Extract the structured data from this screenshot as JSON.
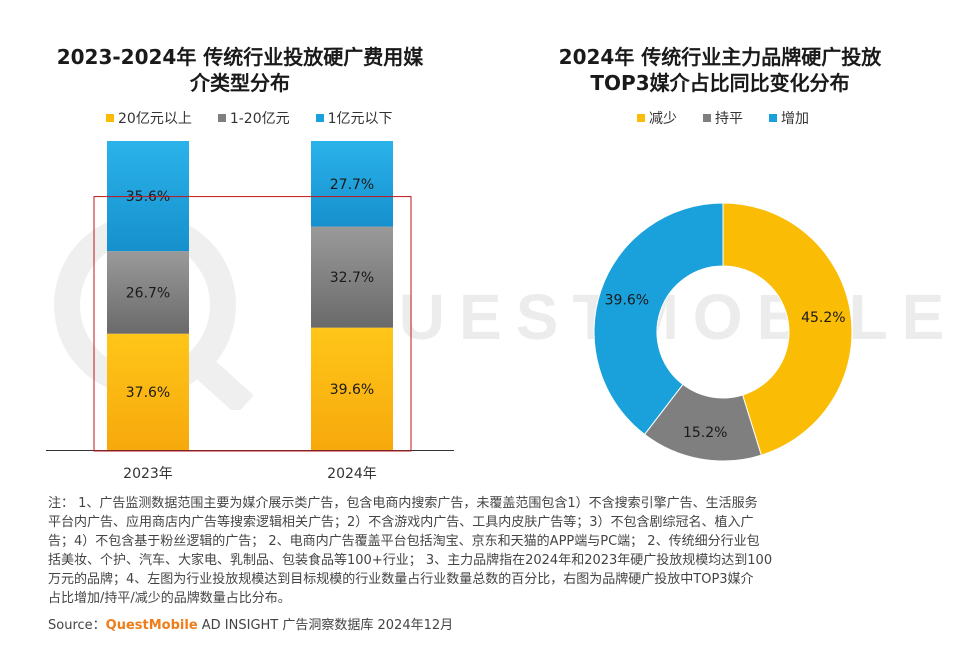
{
  "colors": {
    "yellow": "#fbbc05",
    "gray": "#7f7f7f",
    "blue": "#1aa1dc",
    "highlight_box": "#c0161b",
    "brand": "#f07d1a"
  },
  "watermark": {
    "text": "QUESTMOBILE"
  },
  "chart_data": [
    {
      "type": "bar",
      "stacked": true,
      "title": "2023-2024年 传统行业投放硬广费用媒介类型分布",
      "title_lines": [
        "2023-2024年 传统行业投放硬广费用媒",
        "介类型分布"
      ],
      "categories": [
        "2023年",
        "2024年"
      ],
      "series": [
        {
          "name": "20亿元以上",
          "color": "#fbbc05",
          "values": [
            37.6,
            39.6
          ]
        },
        {
          "name": "1-20亿元",
          "color": "#7f7f7f",
          "values": [
            26.7,
            32.7
          ]
        },
        {
          "name": "1亿元以下",
          "color": "#1aa1dc",
          "values": [
            35.6,
            27.7
          ]
        }
      ],
      "unit": "%",
      "ylim": [
        0,
        100
      ],
      "legend_position": "top",
      "grid": false
    },
    {
      "type": "pie",
      "donut": true,
      "title": "2024年 传统行业主力品牌硬广投放TOP3媒介占比同比变化分布",
      "title_lines": [
        "2024年 传统行业主力品牌硬广投放",
        "TOP3媒介占比同比变化分布"
      ],
      "labels": [
        "减少",
        "持平",
        "增加"
      ],
      "values": [
        45.2,
        15.2,
        39.6
      ],
      "colors": [
        "#fbbc05",
        "#7f7f7f",
        "#1aa1dc"
      ],
      "unit": "%",
      "legend_position": "top"
    }
  ],
  "notes": {
    "lines": [
      "注：  1、广告监测数据范围主要为媒介展示类广告，包含电商内搜索广告，未覆盖范围包含1）不含搜索引擎广告、生活服务",
      "平台内广告、应用商店内广告等搜索逻辑相关广告；2）不含游戏内广告、工具内皮肤广告等；3）不包含剧综冠名、植入广",
      "告；4）不包含基于粉丝逻辑的广告；  2、电商内广告覆盖平台包括淘宝、京东和天猫的APP端与PC端；  2、传统细分行业包",
      "括美妆、个护、汽车、大家电、乳制品、包装食品等100+行业；  3、主力品牌指在2024年和2023年硬广投放规模均达到100",
      "万元的品牌；4、左图为行业投放规模达到目标规模的行业数量占行业数量总数的百分比，右图为品牌硬广投放中TOP3媒介",
      "占比增加/持平/减少的品牌数量占比分布。"
    ]
  },
  "source": {
    "label": "Source：",
    "brand": "QuestMobile",
    "text": " AD INSIGHT 广告洞察数据库 2024年12月"
  }
}
